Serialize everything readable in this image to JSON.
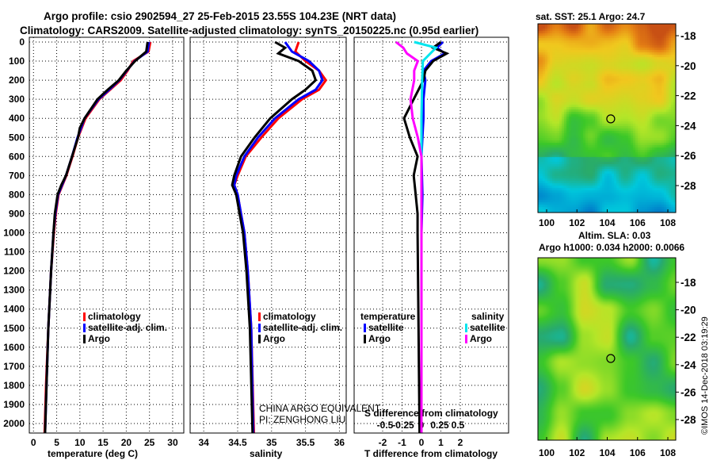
{
  "title_line1": "Argo profile: csio 2902594_27 25-Feb-2015 23.55S 104.23E (NRT data)",
  "title_line2": "Climatology: CARS2009. Satellite-adjusted climatology: synTS_20150225.nc (0.95d earlier)",
  "watermark": "CHINA ARGO EQUIVALENT",
  "pi": "PI: ZENGHONG LIU",
  "credit": "©IMOS 14-Dec-2018 03:19:29",
  "colors": {
    "climatology": "#ff0000",
    "satellite": "#0000ff",
    "argo": "#000000",
    "s_satellite": "#00e5ee",
    "s_argo": "#ff00ff"
  },
  "chart_data": [
    {
      "type": "line",
      "name": "temperature",
      "xlabel": "temperature (deg C)",
      "ylabel": "depth",
      "xlim": [
        -0.9,
        32.4
      ],
      "ylim": [
        2050,
        0
      ],
      "xticks": [
        "0",
        "5",
        "10",
        "15",
        "20",
        "25",
        "30"
      ],
      "xtick_values": [
        0,
        5,
        10,
        15,
        20,
        25,
        30
      ],
      "yticks": [
        "0",
        "100",
        "200",
        "300",
        "400",
        "500",
        "600",
        "700",
        "800",
        "900",
        "1000",
        "1100",
        "1200",
        "1300",
        "1400",
        "1500",
        "1600",
        "1700",
        "1800",
        "1900",
        "2000"
      ],
      "legend": [
        "climatology",
        "satellite-adj. clim.",
        "Argo"
      ],
      "series": [
        {
          "name": "climatology",
          "color": "#ff0000",
          "depth": [
            0,
            50,
            100,
            150,
            200,
            250,
            300,
            400,
            500,
            600,
            700,
            800,
            900,
            1000,
            1200,
            1500,
            1800,
            2050
          ],
          "values": [
            25.2,
            24.8,
            21.5,
            20.3,
            18.8,
            16.5,
            14.2,
            11.2,
            9.6,
            8.4,
            7.1,
            5.4,
            4.8,
            4.4,
            3.8,
            3.2,
            2.7,
            2.4
          ]
        },
        {
          "name": "satellite-adj. clim.",
          "color": "#0000ff",
          "depth": [
            0,
            50,
            100,
            150,
            200,
            250,
            300,
            400,
            500,
            600,
            700,
            800,
            900,
            1000,
            1200,
            1500,
            1800,
            2050
          ],
          "values": [
            24.9,
            24.6,
            21.8,
            20.1,
            18.5,
            16.3,
            14.0,
            11.0,
            9.5,
            8.3,
            7.0,
            5.3,
            4.7,
            4.3,
            3.8,
            3.2,
            2.8,
            2.5
          ]
        },
        {
          "name": "Argo",
          "color": "#000000",
          "depth": [
            0,
            50,
            100,
            150,
            200,
            250,
            300,
            400,
            450,
            500,
            600,
            700,
            750,
            800,
            900,
            1000,
            1200,
            1500,
            1800,
            2050
          ],
          "values": [
            24.6,
            24.3,
            21.9,
            20.0,
            18.4,
            16.0,
            13.8,
            11.0,
            10.0,
            9.6,
            8.3,
            7.0,
            6.0,
            5.2,
            4.6,
            4.3,
            3.8,
            3.2,
            2.8,
            2.5
          ]
        }
      ]
    },
    {
      "type": "line",
      "name": "salinity",
      "xlabel": "salinity",
      "xlim": [
        33.8,
        36.1
      ],
      "ylim": [
        2050,
        0
      ],
      "xticks": [
        "34",
        "34.5",
        "35",
        "35.5",
        "36"
      ],
      "xtick_values": [
        34,
        34.5,
        35,
        35.5,
        36
      ],
      "legend": [
        "climatology",
        "satellite-adj. clim.",
        "Argo"
      ],
      "series": [
        {
          "name": "climatology",
          "color": "#ff0000",
          "depth": [
            0,
            50,
            100,
            150,
            200,
            250,
            300,
            400,
            500,
            600,
            700,
            750,
            800,
            900,
            1000,
            1200,
            1500,
            2050
          ],
          "values": [
            35.4,
            35.35,
            35.5,
            35.7,
            35.8,
            35.7,
            35.45,
            35.1,
            34.85,
            34.62,
            34.5,
            34.45,
            34.5,
            34.55,
            34.6,
            34.65,
            34.7,
            34.74
          ]
        },
        {
          "name": "satellite-adj. clim.",
          "color": "#0000ff",
          "depth": [
            0,
            50,
            100,
            150,
            200,
            250,
            300,
            400,
            500,
            600,
            700,
            750,
            800,
            900,
            1000,
            1200,
            1500,
            2050
          ],
          "values": [
            35.2,
            35.3,
            35.55,
            35.7,
            35.75,
            35.65,
            35.4,
            35.05,
            34.8,
            34.6,
            34.48,
            34.45,
            34.5,
            34.55,
            34.6,
            34.65,
            34.7,
            34.73
          ]
        },
        {
          "name": "Argo",
          "color": "#000000",
          "depth": [
            0,
            30,
            60,
            100,
            150,
            200,
            250,
            300,
            400,
            500,
            600,
            700,
            750,
            800,
            900,
            1000,
            1200,
            1500,
            2050
          ],
          "values": [
            35.05,
            35.2,
            35.1,
            35.4,
            35.6,
            35.65,
            35.5,
            35.3,
            34.98,
            34.75,
            34.55,
            34.45,
            34.42,
            34.48,
            34.53,
            34.58,
            34.63,
            34.68,
            34.72
          ]
        }
      ]
    },
    {
      "type": "line",
      "name": "difference",
      "xlabel": "T difference from climatology",
      "x2label": "S difference from climatology",
      "xlim": [
        -3.47,
        4.49
      ],
      "ylim": [
        2050,
        0
      ],
      "xticks": [
        "-2",
        "-1",
        "0",
        "1",
        "2"
      ],
      "xtick_values": [
        -2,
        -1,
        0,
        1,
        2
      ],
      "x2ticks": [
        "-0.5",
        "-0.25",
        "0",
        "0.25",
        "0.5"
      ],
      "x2tick_values": [
        -0.5,
        -0.25,
        0,
        0.25,
        0.5
      ],
      "legend_t_title": "temperature",
      "legend_s_title": "salinity",
      "legend": [
        "satellite",
        "Argo",
        "satellite",
        "Argo"
      ],
      "series": [
        {
          "name": "T satellite",
          "color": "#0000ff",
          "axis": "T",
          "depth": [
            0,
            30,
            60,
            100,
            150,
            200,
            300,
            400,
            500,
            600,
            800,
            1000,
            1500,
            2050
          ],
          "values": [
            1.1,
            0.8,
            1.2,
            0.5,
            0.1,
            0.2,
            0.1,
            0.1,
            0.05,
            0,
            0.05,
            0,
            0,
            0
          ]
        },
        {
          "name": "T Argo",
          "color": "#000000",
          "axis": "T",
          "depth": [
            0,
            30,
            60,
            100,
            150,
            200,
            300,
            400,
            500,
            600,
            700,
            800,
            900,
            1000,
            1500,
            2050
          ],
          "values": [
            1.0,
            0.6,
            1.3,
            0.6,
            0.2,
            0.1,
            -0.4,
            -0.9,
            -0.6,
            -0.2,
            -0.4,
            -0.3,
            -0.2,
            -0.2,
            -0.15,
            -0.1
          ]
        },
        {
          "name": "S satellite",
          "color": "#00e5ee",
          "axis": "S",
          "depth": [
            0,
            30,
            100,
            200,
            400,
            600,
            1000,
            2050
          ],
          "values": [
            -0.1,
            0.2,
            0.02,
            0.01,
            0,
            0,
            0,
            0
          ]
        },
        {
          "name": "S Argo",
          "color": "#ff00ff",
          "axis": "S",
          "depth": [
            0,
            30,
            60,
            100,
            150,
            200,
            300,
            400,
            500,
            600,
            1000,
            2050
          ],
          "values": [
            -0.35,
            -0.25,
            -0.2,
            -0.05,
            -0.1,
            -0.1,
            -0.15,
            -0.12,
            -0.05,
            0,
            0,
            0
          ]
        }
      ]
    }
  ],
  "map_top": {
    "title": "sat. SST: 25.1 Argo: 24.7",
    "xticks": [
      "100",
      "102",
      "104",
      "106",
      "108"
    ],
    "yticks": [
      "-18",
      "-20",
      "-22",
      "-24",
      "-26",
      "-28"
    ],
    "marker_lon": 104.23,
    "marker_lat": -23.55
  },
  "map_bottom": {
    "title1": "Altim. SLA: 0.03",
    "title2": "Argo h1000: 0.034 h2000: 0.0066",
    "xticks": [
      "100",
      "102",
      "104",
      "106",
      "108"
    ],
    "yticks": [
      "-18",
      "-20",
      "-22",
      "-24",
      "-26",
      "-28"
    ],
    "marker_lon": 104.23,
    "marker_lat": -23.55
  }
}
